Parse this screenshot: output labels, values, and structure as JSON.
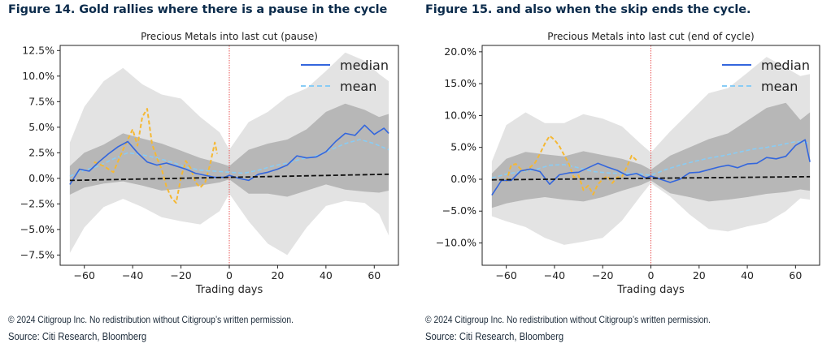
{
  "figures": [
    {
      "heading": "Figure 14. Gold rallies where there is a pause in the cycle",
      "copyright": "© 2024 Citigroup Inc. No redistribution without Citigroup’s written permission.",
      "source": "Source: Citi Research, Bloomberg"
    },
    {
      "heading": "Figure 15. and also when the skip ends the cycle.",
      "copyright": "© 2024 Citigroup Inc. No redistribution without Citigroup’s written permission.",
      "source": "Source: Citi Research, Bloomberg"
    }
  ],
  "chart_data": [
    {
      "type": "line",
      "title": "Precious Metals into last cut (pause)",
      "xlabel": "Trading days",
      "ylabel": "",
      "xlim": [
        -70,
        70
      ],
      "ylim": [
        -8.5,
        13.0
      ],
      "xticks": [
        -60,
        -40,
        -20,
        0,
        20,
        40,
        60
      ],
      "xtick_labels": [
        "−60",
        "−40",
        "−20",
        "0",
        "20",
        "40",
        "60"
      ],
      "yticks": [
        -7.5,
        -5.0,
        -2.5,
        0.0,
        2.5,
        5.0,
        7.5,
        10.0,
        12.5
      ],
      "ytick_labels": [
        "−7.5%",
        "−5.0%",
        "−2.5%",
        "0.0%",
        "2.5%",
        "5.0%",
        "7.5%",
        "10.0%",
        "12.5%"
      ],
      "legend": {
        "position": "top-right",
        "entries": [
          "median",
          "mean"
        ]
      },
      "vline_x": 0,
      "colors": {
        "median": "#3366dd",
        "mean": "#88ccf5",
        "highlight": "#f5b833",
        "trend": "#111111",
        "vline": "#e85050",
        "band_outer": "#e3e3e3",
        "band_inner": "#b7b7b7"
      },
      "series": [
        {
          "name": "median",
          "x": [
            -66,
            -62,
            -58,
            -54,
            -50,
            -46,
            -42,
            -38,
            -34,
            -30,
            -26,
            -22,
            -18,
            -14,
            -10,
            -6,
            -2,
            0,
            4,
            8,
            12,
            16,
            20,
            24,
            28,
            32,
            36,
            40,
            44,
            48,
            52,
            56,
            60,
            64,
            66
          ],
          "values": [
            -0.6,
            0.9,
            0.7,
            1.6,
            2.4,
            3.1,
            3.6,
            2.5,
            1.6,
            1.3,
            1.5,
            1.2,
            0.9,
            0.5,
            0.3,
            0.1,
            0.1,
            0.3,
            0.0,
            -0.2,
            0.4,
            0.6,
            0.9,
            1.3,
            2.2,
            2.0,
            2.1,
            2.6,
            3.6,
            4.4,
            4.2,
            5.2,
            4.3,
            4.9,
            4.4
          ]
        },
        {
          "name": "mean",
          "x": [
            -66,
            -60,
            -54,
            -48,
            -42,
            -36,
            -30,
            -24,
            -18,
            -12,
            -6,
            0,
            6,
            12,
            18,
            24,
            30,
            36,
            42,
            48,
            54,
            60,
            66
          ],
          "values": [
            0.2,
            0.8,
            1.2,
            1.9,
            2.5,
            2.3,
            2.0,
            1.6,
            1.1,
            0.8,
            0.7,
            0.6,
            0.5,
            0.8,
            1.2,
            1.5,
            1.9,
            2.2,
            2.8,
            3.4,
            3.8,
            3.4,
            2.8
          ]
        },
        {
          "name": "highlight",
          "x": [
            -56,
            -52,
            -48,
            -44,
            -40,
            -38,
            -36,
            -34,
            -32,
            -30,
            -28,
            -26,
            -24,
            -22,
            -20,
            -18,
            -16,
            -14,
            -12,
            -10,
            -8,
            -6,
            -5
          ],
          "values": [
            1.6,
            1.2,
            0.6,
            2.8,
            4.8,
            3.2,
            6.0,
            6.8,
            3.4,
            2.0,
            0.9,
            -0.8,
            -1.9,
            -2.4,
            0.1,
            1.7,
            1.0,
            -0.4,
            -0.9,
            -0.4,
            1.3,
            3.5,
            2.4
          ]
        },
        {
          "name": "trend",
          "x": [
            -66,
            66
          ],
          "values": [
            -0.2,
            0.4
          ]
        }
      ],
      "bands": {
        "outer": {
          "x": [
            -66,
            -60,
            -52,
            -44,
            -36,
            -28,
            -20,
            -12,
            -4,
            0,
            8,
            16,
            24,
            32,
            40,
            48,
            56,
            62,
            66
          ],
          "upper": [
            3.5,
            7.0,
            9.5,
            10.8,
            9.2,
            8.2,
            7.8,
            6.0,
            4.5,
            2.8,
            5.5,
            6.5,
            8.0,
            8.8,
            10.5,
            12.3,
            11.5,
            10.2,
            9.5
          ],
          "lower": [
            -7.3,
            -4.8,
            -2.8,
            -2.0,
            -2.8,
            -3.8,
            -4.2,
            -4.5,
            -3.2,
            -1.5,
            -4.2,
            -6.4,
            -7.5,
            -4.8,
            -2.7,
            -2.2,
            -2.4,
            -3.5,
            -5.6
          ]
        },
        "inner": {
          "x": [
            -66,
            -60,
            -52,
            -44,
            -36,
            -28,
            -20,
            -12,
            -4,
            0,
            8,
            16,
            24,
            32,
            40,
            48,
            56,
            62,
            66
          ],
          "upper": [
            1.2,
            2.5,
            3.3,
            4.4,
            3.9,
            3.4,
            2.7,
            2.0,
            1.5,
            1.2,
            2.8,
            3.4,
            3.8,
            4.8,
            6.5,
            7.3,
            6.7,
            6.0,
            6.3
          ],
          "lower": [
            -1.6,
            -0.9,
            -0.5,
            -0.3,
            -0.7,
            -1.2,
            -1.0,
            -0.7,
            -0.4,
            -0.1,
            -1.5,
            -1.5,
            -1.8,
            -1.2,
            -0.6,
            -1.1,
            -1.3,
            -1.4,
            -1.2
          ]
        }
      }
    },
    {
      "type": "line",
      "title": "Precious Metals into last cut (end of cycle)",
      "xlabel": "Trading days",
      "ylabel": "",
      "xlim": [
        -70,
        70
      ],
      "ylim": [
        -13.5,
        21.0
      ],
      "xticks": [
        -60,
        -40,
        -20,
        0,
        20,
        40,
        60
      ],
      "xtick_labels": [
        "−60",
        "−40",
        "−20",
        "0",
        "20",
        "40",
        "60"
      ],
      "yticks": [
        -10.0,
        -5.0,
        0.0,
        5.0,
        10.0,
        15.0,
        20.0
      ],
      "ytick_labels": [
        "−10.0%",
        "−5.0%",
        "0.0%",
        "5.0%",
        "10.0%",
        "15.0%",
        "20.0%"
      ],
      "legend": {
        "position": "top-right",
        "entries": [
          "median",
          "mean"
        ]
      },
      "vline_x": 0,
      "colors": {
        "median": "#3366dd",
        "mean": "#88ccf5",
        "highlight": "#f5b833",
        "trend": "#111111",
        "vline": "#e85050",
        "band_outer": "#e3e3e3",
        "band_inner": "#b7b7b7"
      },
      "series": [
        {
          "name": "median",
          "x": [
            -66,
            -62,
            -58,
            -54,
            -50,
            -46,
            -42,
            -38,
            -34,
            -30,
            -26,
            -22,
            -18,
            -14,
            -10,
            -6,
            -2,
            0,
            4,
            8,
            12,
            16,
            20,
            24,
            28,
            32,
            36,
            40,
            44,
            48,
            52,
            56,
            60,
            64,
            66
          ],
          "values": [
            -2.5,
            -0.2,
            -0.2,
            1.3,
            1.6,
            1.2,
            -0.8,
            0.7,
            1.0,
            1.1,
            1.8,
            2.5,
            1.9,
            1.4,
            0.6,
            0.9,
            0.2,
            0.5,
            0.0,
            -0.5,
            0.0,
            1.0,
            1.1,
            1.5,
            1.9,
            2.2,
            1.8,
            2.4,
            2.5,
            3.4,
            3.2,
            3.6,
            5.3,
            6.2,
            2.7
          ]
        },
        {
          "name": "mean",
          "x": [
            -66,
            -60,
            -54,
            -48,
            -42,
            -36,
            -30,
            -24,
            -18,
            -12,
            -6,
            0,
            6,
            12,
            18,
            24,
            30,
            36,
            42,
            48,
            54,
            60,
            66
          ],
          "values": [
            0.2,
            0.8,
            1.2,
            1.5,
            2.2,
            2.3,
            1.8,
            1.2,
            1.0,
            0.9,
            0.9,
            0.6,
            1.5,
            2.2,
            2.8,
            3.3,
            3.7,
            4.2,
            4.7,
            5.0,
            5.4,
            5.9,
            5.7
          ]
        },
        {
          "name": "highlight",
          "x": [
            -60,
            -58,
            -56,
            -54,
            -52,
            -50,
            -48,
            -46,
            -44,
            -42,
            -40,
            -38,
            -36,
            -34,
            -32,
            -30,
            -28,
            -26,
            -24,
            -22,
            -20,
            -18,
            -16,
            -14,
            -12,
            -10,
            -8,
            -6
          ],
          "values": [
            -0.4,
            2.2,
            2.4,
            1.6,
            1.4,
            1.9,
            2.6,
            4.0,
            5.6,
            6.8,
            6.2,
            5.2,
            3.8,
            2.4,
            0.3,
            0.6,
            -1.7,
            -1.0,
            -2.4,
            -0.8,
            0.0,
            0.5,
            -0.6,
            0.3,
            0.4,
            1.9,
            3.7,
            3.0
          ]
        },
        {
          "name": "trend",
          "x": [
            -66,
            66
          ],
          "values": [
            -0.1,
            0.4
          ]
        }
      ],
      "bands": {
        "outer": {
          "x": [
            -66,
            -60,
            -52,
            -44,
            -36,
            -28,
            -20,
            -12,
            -4,
            0,
            8,
            16,
            24,
            32,
            40,
            48,
            56,
            62,
            66
          ],
          "upper": [
            2.8,
            8.5,
            10.5,
            8.8,
            8.8,
            10.2,
            9.5,
            8.3,
            5.5,
            4.2,
            7.5,
            10.5,
            13.5,
            14.3,
            16.7,
            19.2,
            17.5,
            16.2,
            16.5
          ],
          "lower": [
            -5.8,
            -6.6,
            -7.5,
            -9.2,
            -10.3,
            -9.8,
            -9.2,
            -6.5,
            -2.5,
            -0.6,
            -2.7,
            -5.5,
            -7.8,
            -8.2,
            -7.4,
            -6.8,
            -5.0,
            -3.0,
            -3.2
          ]
        },
        "inner": {
          "x": [
            -66,
            -60,
            -52,
            -44,
            -36,
            -28,
            -20,
            -12,
            -4,
            0,
            8,
            16,
            24,
            32,
            40,
            48,
            56,
            62,
            66
          ],
          "upper": [
            0.9,
            3.2,
            4.3,
            3.9,
            3.6,
            4.4,
            3.8,
            3.2,
            2.3,
            1.5,
            3.7,
            5.0,
            6.3,
            7.2,
            9.2,
            11.2,
            12.0,
            9.3,
            10.5
          ],
          "lower": [
            -4.5,
            -3.8,
            -3.2,
            -2.8,
            -3.2,
            -3.5,
            -2.8,
            -1.8,
            -0.9,
            -0.2,
            -2.2,
            -2.8,
            -3.5,
            -3.2,
            -2.8,
            -2.3,
            -2.0,
            -1.6,
            -1.8
          ]
        }
      }
    }
  ]
}
